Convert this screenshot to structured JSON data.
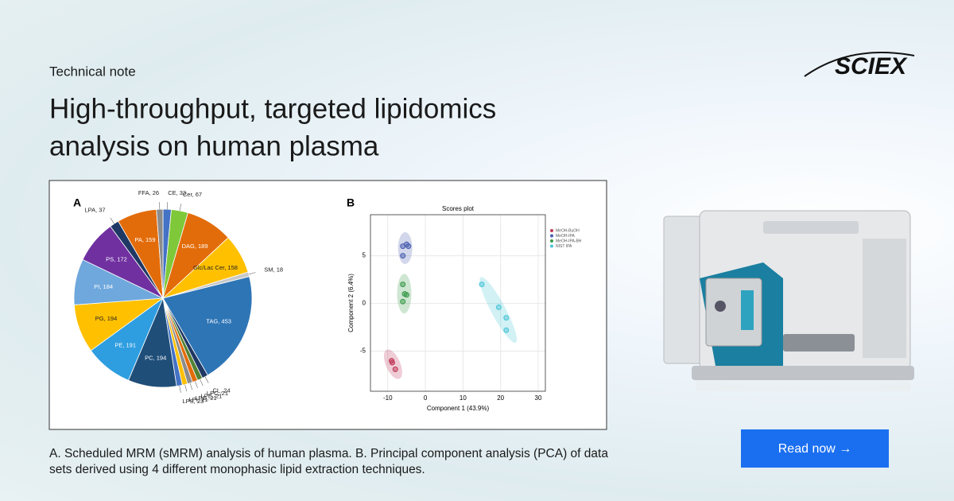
{
  "header": {
    "eyebrow": "Technical note",
    "title_lines": [
      "High-throughput, targeted lipidomics",
      "analysis on human plasma"
    ]
  },
  "logo": "SCIEX",
  "chart_data": [
    {
      "type": "pie",
      "panel": "A",
      "categories": [
        "CE",
        "Cer",
        "DAG",
        "Glc/Lac Cer",
        "SM",
        "TAG",
        "CL",
        "LPC",
        "LPE",
        "LPG",
        "LPI",
        "LPS",
        "PC",
        "PE",
        "PG",
        "PI",
        "PS",
        "LPA",
        "PA",
        "FFA"
      ],
      "values": [
        33,
        67,
        189,
        158,
        18,
        453,
        24,
        21,
        21,
        21,
        21,
        23,
        194,
        191,
        194,
        184,
        172,
        37,
        159,
        26
      ],
      "value_labels": [
        "CE, 33",
        "Cer, 67",
        "DAG, 189",
        "Glc/Lac Cer, 158",
        "SM, 18",
        "TAG, 453",
        "CL, 24",
        "LPC, 21",
        "LPE, 21",
        "LPG, 21",
        "LPI, 21",
        "LPS, 23",
        "PC, 194",
        "PE, 191",
        "PG, 194",
        "PI, 184",
        "PS, 172",
        "LPA, 37",
        "PA, 159",
        "FFA, 26"
      ],
      "colors": [
        "#4472c4",
        "#7ec83a",
        "#e36c0a",
        "#ffc000",
        "#c8c8c8",
        "#2e75b6",
        "#1f3864",
        "#548235",
        "#e36c0a",
        "#8c8c8c",
        "#ffc000",
        "#4472c4",
        "#1f4e79",
        "#2e9ee0",
        "#ffc000",
        "#6fa8dc",
        "#7030a0",
        "#1f3864",
        "#e36c0a",
        "#8c8c8c"
      ]
    },
    {
      "type": "scatter",
      "panel": "B",
      "title": "Scores plot",
      "x_label": "Component 1 (43.9%)",
      "y_label": "Component 2 (6.4%)",
      "xlim": [
        -14.6,
        31.9
      ],
      "ylim": [
        -9.2,
        9.3
      ],
      "xticks": [
        -10,
        0,
        10,
        20,
        30
      ],
      "yticks": [
        -5,
        0,
        5
      ],
      "grid": true,
      "series": [
        {
          "name": "MeOH-BuOH",
          "color": "#c0395a",
          "x": [
            -9,
            -8.8,
            -8
          ],
          "values": [
            -6,
            -6.2,
            -6.9
          ]
        },
        {
          "name": "MeOH-IPA",
          "color": "#4a5fb0",
          "x": [
            -6,
            -5,
            -4.5,
            -6
          ],
          "values": [
            6,
            6.2,
            6,
            5
          ]
        },
        {
          "name": "MeOH-IPA-BH",
          "color": "#3a9a4a",
          "x": [
            -6,
            -5.5,
            -5,
            -6
          ],
          "values": [
            2,
            1,
            0.9,
            0.2
          ]
        },
        {
          "name": "NIST IPA",
          "color": "#4cc6d8",
          "x": [
            15,
            19.5,
            21.5,
            21.5
          ],
          "values": [
            2,
            -0.4,
            -1.5,
            -2.8
          ]
        }
      ]
    }
  ],
  "caption_lines": [
    "A. Scheduled MRM (sMRM) analysis of human plasma.  B. Principal component analysis (PCA) of data",
    "sets derived using 4 different monophasic lipid extraction techniques."
  ],
  "button": "Read now →"
}
